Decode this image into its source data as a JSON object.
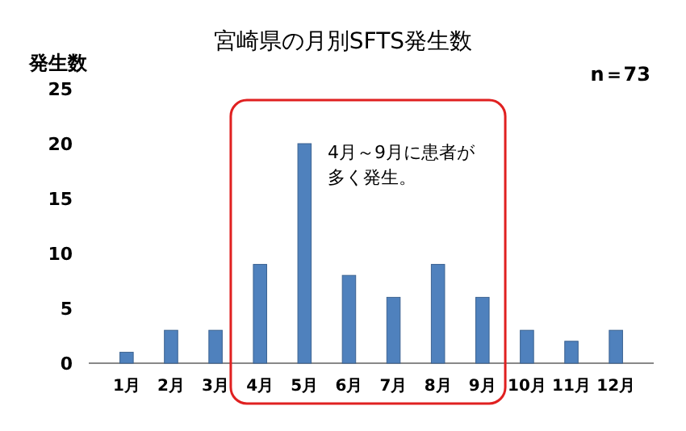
{
  "chart_data": {
    "type": "bar",
    "title": "宮崎県の月別SFTS発生数",
    "ylabel": "発生数",
    "categories": [
      "1月",
      "2月",
      "3月",
      "4月",
      "5月",
      "6月",
      "7月",
      "8月",
      "9月",
      "10月",
      "11月",
      "12月"
    ],
    "values": [
      1,
      3,
      3,
      9,
      20,
      8,
      6,
      9,
      6,
      3,
      2,
      3
    ],
    "color": "#4f81bd",
    "ylim": [
      0,
      25
    ],
    "yticks": [
      0,
      5,
      10,
      15,
      20,
      25
    ],
    "grid": false,
    "annotations": [
      "n＝73",
      "4月～9月に患者が多く発生。"
    ]
  }
}
